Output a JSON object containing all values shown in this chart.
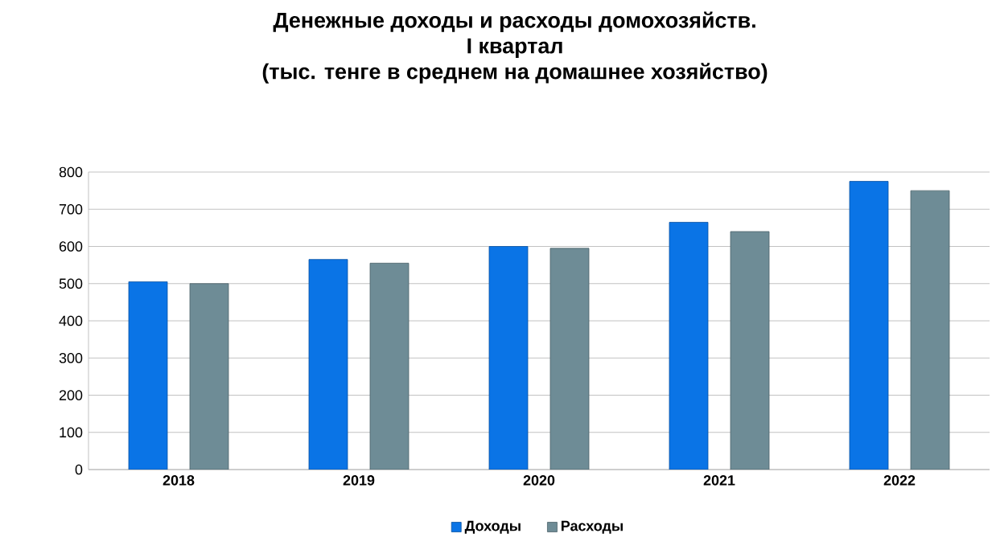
{
  "chart_data": {
    "type": "bar",
    "title": "Денежные доходы и расходы домохозяйств.\nI квартал\n(тыс. тенге в среднем на домашнее хозяйство)",
    "categories": [
      "2018",
      "2019",
      "2020",
      "2021",
      "2022"
    ],
    "series": [
      {
        "name": "Доходы",
        "color": "#0a74e6",
        "values": [
          505,
          565,
          600,
          665,
          775
        ]
      },
      {
        "name": "Расходы",
        "color": "#6e8c96",
        "values": [
          500,
          555,
          595,
          640,
          750
        ]
      }
    ],
    "ylim": [
      0,
      800
    ],
    "yticks": [
      0,
      100,
      200,
      300,
      400,
      500,
      600,
      700,
      800
    ],
    "grid": "y",
    "legend": "bottom"
  }
}
